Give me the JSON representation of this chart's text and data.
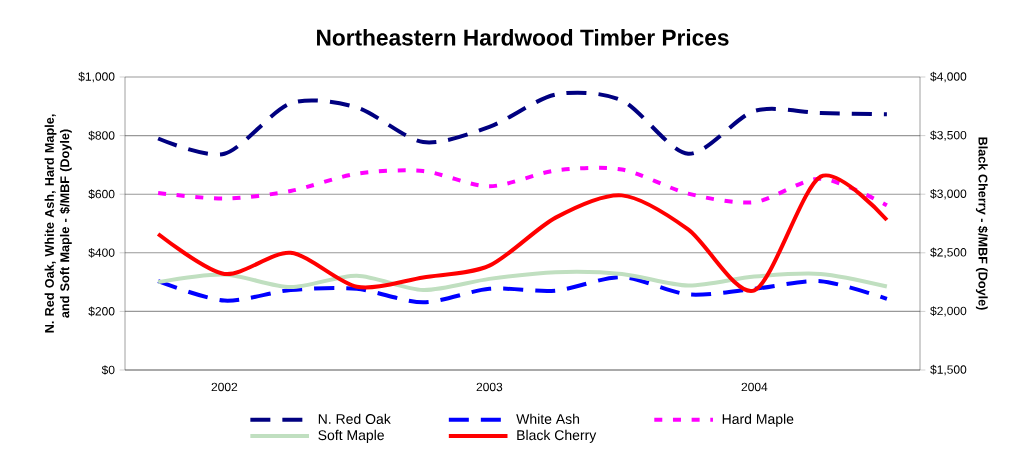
{
  "chart_data": {
    "type": "line",
    "title": "Northeastern Hardwood Timber Prices",
    "ylabel": "N. Red Oak, White Ash, Hard Maple, and Soft Maple - $/MBF (Doyle)",
    "y2label": "Black Cherry - $/MBF (Doyle)",
    "categories": [
      null,
      "2002",
      null,
      null,
      null,
      "2003",
      null,
      null,
      null,
      "2004",
      null,
      null
    ],
    "series": [
      {
        "name": "N. Red Oak",
        "color": "#000080",
        "line_style": "dashed",
        "values": [
          790,
          738,
          910,
          896,
          778,
          830,
          940,
          920,
          738,
          884,
          877,
          873
        ]
      },
      {
        "name": "White Ash",
        "color": "#0000ff",
        "line_style": "dashed",
        "values": [
          303,
          237,
          273,
          277,
          231,
          277,
          271,
          317,
          258,
          277,
          303,
          243
        ]
      },
      {
        "name": "Hard Maple",
        "color": "#ff00ff",
        "line_style": "dotted",
        "values": [
          604,
          585,
          611,
          670,
          679,
          627,
          681,
          684,
          602,
          573,
          653,
          562
        ]
      },
      {
        "name": "Soft Maple",
        "color": "#c0dfc0",
        "line_style": "solid",
        "values": [
          300,
          326,
          283,
          322,
          273,
          311,
          334,
          328,
          288,
          319,
          328,
          285
        ]
      },
      {
        "name": "Black Cherry",
        "color": "#ff0000",
        "line_style": "solid",
        "axis": "y2",
        "values": [
          2660,
          2320,
          2500,
          2210,
          2290,
          2390,
          2800,
          2990,
          2700,
          2180,
          3150,
          2780
        ]
      }
    ],
    "ylim": [
      0,
      1000
    ],
    "yticks": [
      {
        "value": 0,
        "label": "$0"
      },
      {
        "value": 200,
        "label": "$200"
      },
      {
        "value": 400,
        "label": "$400"
      },
      {
        "value": 600,
        "label": "$600"
      },
      {
        "value": 800,
        "label": "$800"
      },
      {
        "value": 1000,
        "label": "$1,000"
      }
    ],
    "y2lim": [
      1500,
      4000
    ],
    "y2ticks": [
      {
        "value": 1500,
        "label": "$1,500"
      },
      {
        "value": 2000,
        "label": "$2,000"
      },
      {
        "value": 2500,
        "label": "$2,500"
      },
      {
        "value": 3000,
        "label": "$3,000"
      },
      {
        "value": 3500,
        "label": "$3,500"
      },
      {
        "value": 4000,
        "label": "$4,000"
      }
    ],
    "grid": "y",
    "legend": "bottom"
  }
}
